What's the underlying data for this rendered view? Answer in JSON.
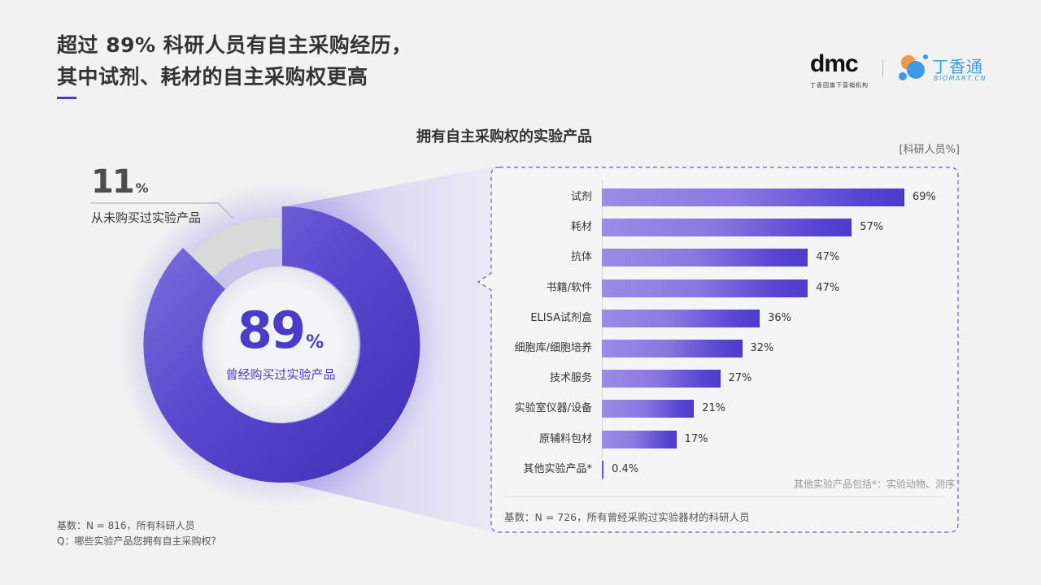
{
  "header": {
    "title_line1": "超过 89% 科研人员有自主采购经历，",
    "title_line2": "其中试剂、耗材的自主采购权更高",
    "accent_color": "#4a3bc4"
  },
  "logos": {
    "dmc": {
      "word": "dmc",
      "sub": "丁香园旗下营销机构"
    },
    "biomart": {
      "word": "丁香通",
      "sub": "BIOMART.CN",
      "color": "#3a9be6",
      "dot_color_orange": "#f09a45"
    }
  },
  "donut": {
    "never_bought_pct": "11",
    "never_bought_label": "从未购买过实验产品",
    "bought_pct": "89",
    "bought_label": "曾经购买过实验产品",
    "percent_sign": "%",
    "colors": {
      "bought": "#5a45d2",
      "never": "#d9d9d9"
    }
  },
  "chart": {
    "title": "拥有自主采购权的实验产品",
    "unit": "[科研人员%]",
    "other_note": "其他实验产品包括*：实验动物、测序",
    "base_note": "基数：N = 726，所有曾经采购过实验器材的科研人员"
  },
  "footer": {
    "base": "基数：N = 816，所有科研人员",
    "question": "Q：哪些实验产品您拥有自主采购权？"
  },
  "chart_data": [
    {
      "type": "pie",
      "title": "",
      "labels": [
        "曾经购买过实验产品",
        "从未购买过实验产品"
      ],
      "values": [
        89,
        11
      ],
      "unit": "%",
      "style": "donut",
      "base": "N = 816，所有科研人员"
    },
    {
      "type": "bar",
      "orientation": "horizontal",
      "title": "拥有自主采购权的实验产品",
      "unit_label": "[科研人员%]",
      "categories": [
        "试剂",
        "耗材",
        "抗体",
        "书籍/软件",
        "ELISA试剂盒",
        "细胞库/细胞培养",
        "技术服务",
        "实验室仪器/设备",
        "原辅料包材",
        "其他实验产品*"
      ],
      "values": [
        69,
        57,
        47,
        47,
        36,
        32,
        27,
        21,
        17,
        0.4
      ],
      "value_labels": [
        "69%",
        "57%",
        "47%",
        "47%",
        "36%",
        "32%",
        "27%",
        "21%",
        "17%",
        "0.4%"
      ],
      "xlabel": "",
      "ylabel": "",
      "grid": false,
      "annotation": "其他实验产品包括*：实验动物、测序",
      "base": "N = 726，所有曾经采购过实验器材的科研人员"
    }
  ]
}
